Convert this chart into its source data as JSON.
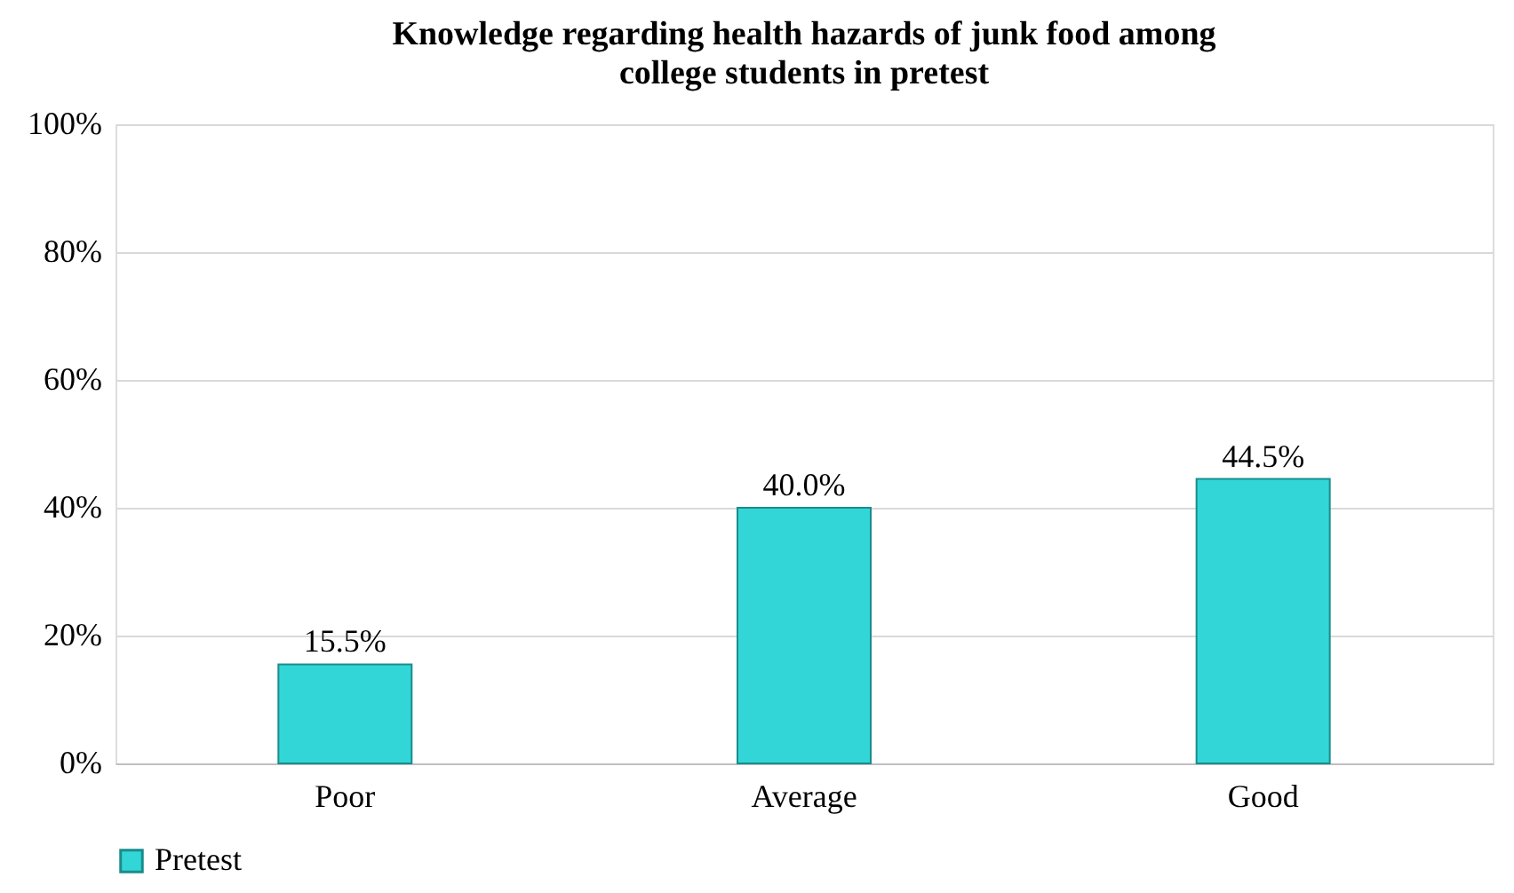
{
  "chart_data": {
    "type": "bar",
    "title": "Knowledge regarding health hazards of junk food among college students in pretest",
    "categories": [
      "Poor",
      "Average",
      "Good"
    ],
    "series": [
      {
        "name": "Pretest",
        "color": "#33d6d6",
        "values": [
          15.5,
          40.0,
          44.5
        ],
        "value_labels": [
          "15.5%",
          "40.0%",
          "44.5%"
        ]
      }
    ],
    "ylim": [
      0,
      100
    ],
    "yticks": [
      {
        "value": 0,
        "label": "0%"
      },
      {
        "value": 20,
        "label": "20%"
      },
      {
        "value": 40,
        "label": "40%"
      },
      {
        "value": 60,
        "label": "60%"
      },
      {
        "value": 80,
        "label": "80%"
      },
      {
        "value": 100,
        "label": "100%"
      }
    ],
    "grid": "y",
    "legend": "bottom"
  }
}
